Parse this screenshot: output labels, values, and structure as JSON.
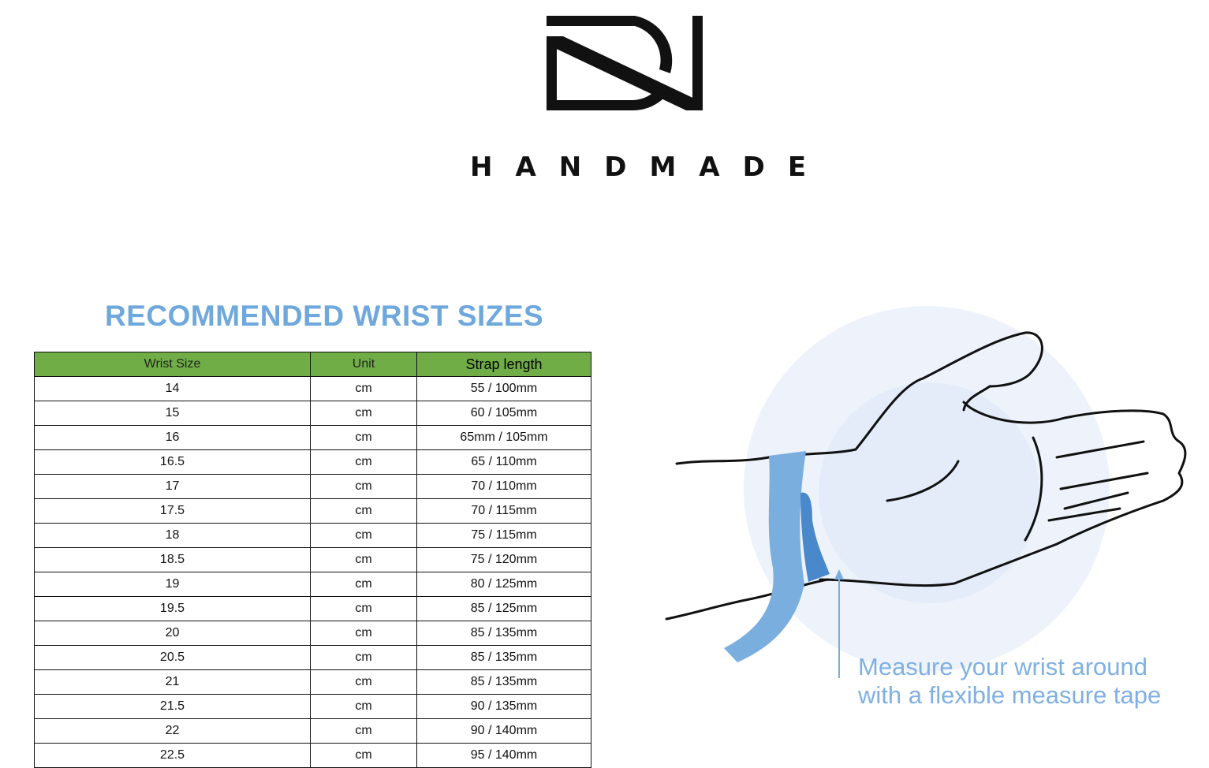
{
  "brand": {
    "logo_letters": "DN",
    "name": "HANDMADE"
  },
  "title": "RECOMMENDED WRIST SIZES",
  "table": {
    "headers": [
      "Wrist Size",
      "Unit",
      "Strap length"
    ],
    "rows": [
      [
        "14",
        "cm",
        "55 / 100mm"
      ],
      [
        "15",
        "cm",
        "60 / 105mm"
      ],
      [
        "16",
        "cm",
        "65mm / 105mm"
      ],
      [
        "16.5",
        "cm",
        "65 / 110mm"
      ],
      [
        "17",
        "cm",
        "70 / 110mm"
      ],
      [
        "17.5",
        "cm",
        "70 / 115mm"
      ],
      [
        "18",
        "cm",
        "75 / 115mm"
      ],
      [
        "18.5",
        "cm",
        "75 / 120mm"
      ],
      [
        "19",
        "cm",
        "80 / 125mm"
      ],
      [
        "19.5",
        "cm",
        "85 / 125mm"
      ],
      [
        "20",
        "cm",
        "85 / 135mm"
      ],
      [
        "20.5",
        "cm",
        "85 / 135mm"
      ],
      [
        "21",
        "cm",
        "85 / 135mm"
      ],
      [
        "21.5",
        "cm",
        "90 / 135mm"
      ],
      [
        "22",
        "cm",
        "90 / 140mm"
      ],
      [
        "22.5",
        "cm",
        "95 / 140mm"
      ]
    ]
  },
  "caption": {
    "line1": "Measure your wrist around",
    "line2": "with a flexible measure tape"
  },
  "colors": {
    "header_green": "#70ad47",
    "accent_blue": "#6fa8dc",
    "tape_blue": "#7aaedf"
  }
}
